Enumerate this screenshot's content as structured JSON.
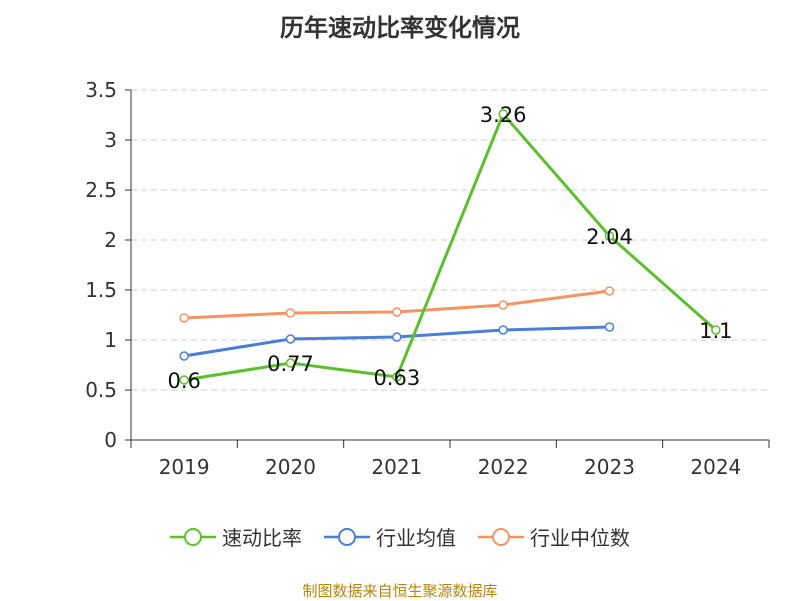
{
  "title": "历年速动比率变化情况",
  "footer": "制图数据来自恒生聚源数据库",
  "colors": {
    "speed_ratio": "#5cc02c",
    "industry_avg": "#4a7fd9",
    "industry_median": "#f79361",
    "grid": "#cccccc",
    "axis": "#333333",
    "footer": "#b8860b"
  },
  "chart_data": {
    "type": "line",
    "title": "历年速动比率变化情况",
    "categories": [
      "2019",
      "2020",
      "2021",
      "2022",
      "2023",
      "2024"
    ],
    "ylim": [
      0,
      3.5
    ],
    "yticks": [
      "0",
      "0.5",
      "1",
      "1.5",
      "2",
      "2.5",
      "3",
      "3.5"
    ],
    "grid": true,
    "legend_position": "bottom",
    "series": [
      {
        "name": "速动比率",
        "color": "#5cc02c",
        "values": [
          0.6,
          0.77,
          0.63,
          3.26,
          2.04,
          1.1
        ],
        "labels": [
          "0.6",
          "0.77",
          "0.63",
          "3.26",
          "2.04",
          "1.1"
        ]
      },
      {
        "name": "行业均值",
        "color": "#4a7fd9",
        "values": [
          0.84,
          1.01,
          1.03,
          1.1,
          1.13,
          null
        ]
      },
      {
        "name": "行业中位数",
        "color": "#f79361",
        "values": [
          1.22,
          1.27,
          1.28,
          1.35,
          1.49,
          null
        ]
      }
    ]
  }
}
